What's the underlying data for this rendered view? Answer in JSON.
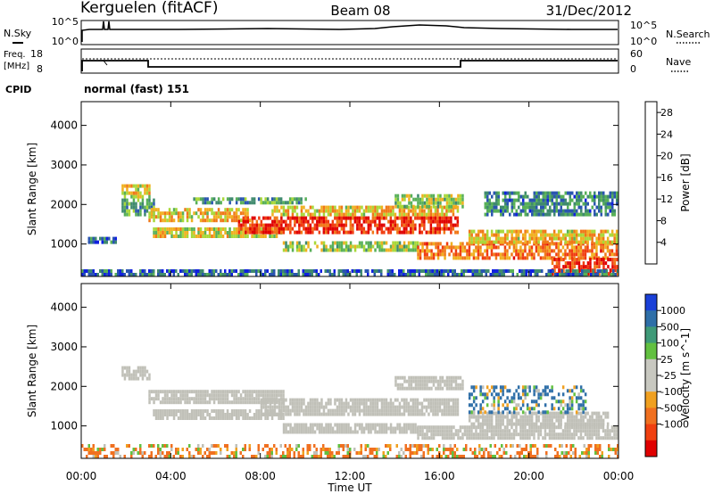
{
  "header": {
    "station": "Kerguelen (fitACF)",
    "beam": "Beam 08",
    "date": "31/Dec/2012"
  },
  "noise_panel": {
    "left_label": "N.Sky",
    "right_label": "N.Search",
    "left_ticks": [
      "10^5",
      "10^0"
    ],
    "right_ticks": [
      "10^5",
      "10^0"
    ]
  },
  "freq_panel": {
    "left_label_line1": "Freq.",
    "left_label_line2": "[MHz]",
    "left_ticks": [
      "18",
      "8"
    ],
    "right_label": "Nave",
    "right_ticks": [
      "60",
      "0"
    ]
  },
  "cpid": {
    "label": "CPID",
    "value": "normal (fast) 151"
  },
  "colors": {
    "power_scale": [
      "#1020e0",
      "#2a55b0",
      "#3f8a6e",
      "#58b058",
      "#a8d838",
      "#f0b020",
      "#f07818",
      "#f03c10",
      "#e00000"
    ],
    "velocity_scale": [
      "#1a40d8",
      "#2f6fa8",
      "#3f9a78",
      "#62c040",
      "#c8c8c0",
      "#c8c8c0",
      "#f0a020",
      "#f07020",
      "#f04010",
      "#e00000"
    ],
    "ground_scatter": "#c0c0b8"
  },
  "chart_data": [
    {
      "type": "heatmap",
      "title": "Power",
      "xlabel": "Time UT",
      "ylabel": "Slant Range [km]",
      "x_ticks": [
        "00:00",
        "04:00",
        "08:00",
        "12:00",
        "16:00",
        "20:00",
        "00:00"
      ],
      "xlim": [
        "00:00",
        "24:00"
      ],
      "y_ticks": [
        1000,
        2000,
        3000,
        4000
      ],
      "ylim": [
        180,
        4600
      ],
      "colorbar": {
        "label": "Power [dB]",
        "ticks": [
          4,
          8,
          12,
          16,
          20,
          24,
          28
        ],
        "range": [
          0,
          30
        ]
      },
      "bands": [
        {
          "t0": 0.3,
          "t1": 1.5,
          "r0": 1000,
          "r1": 1100,
          "level": 6
        },
        {
          "t0": 1.8,
          "t1": 3.0,
          "r0": 2150,
          "r1": 2450,
          "level": 16
        },
        {
          "t0": 1.8,
          "t1": 3.2,
          "r0": 1700,
          "r1": 2100,
          "level": 10
        },
        {
          "t0": 3.0,
          "t1": 7.5,
          "r0": 1550,
          "r1": 1900,
          "level": 18
        },
        {
          "t0": 3.2,
          "t1": 9.0,
          "r0": 1150,
          "r1": 1400,
          "level": 16
        },
        {
          "t0": 5.0,
          "t1": 10.0,
          "r0": 2000,
          "r1": 2150,
          "level": 10
        },
        {
          "t0": 7.0,
          "t1": 16.8,
          "r0": 1250,
          "r1": 1700,
          "level": 26
        },
        {
          "t0": 8.5,
          "t1": 16.8,
          "r0": 1700,
          "r1": 1900,
          "level": 18
        },
        {
          "t0": 9.0,
          "t1": 15.0,
          "r0": 800,
          "r1": 1000,
          "level": 14
        },
        {
          "t0": 14.0,
          "t1": 17.0,
          "r0": 1900,
          "r1": 2200,
          "level": 14
        },
        {
          "t0": 15.0,
          "t1": 24.0,
          "r0": 600,
          "r1": 1000,
          "level": 22
        },
        {
          "t0": 17.3,
          "t1": 24.0,
          "r0": 1000,
          "r1": 1300,
          "level": 18
        },
        {
          "t0": 18.0,
          "t1": 24.0,
          "r0": 1700,
          "r1": 2300,
          "level": 8
        },
        {
          "t0": 21.0,
          "t1": 24.0,
          "r0": 200,
          "r1": 600,
          "level": 26
        },
        {
          "t0": 0.0,
          "t1": 24.0,
          "r0": 180,
          "r1": 350,
          "level": 6
        }
      ]
    },
    {
      "type": "heatmap",
      "title": "Velocity",
      "xlabel": "Time UT",
      "ylabel": "Slant Range [km]",
      "x_ticks": [
        "00:00",
        "04:00",
        "08:00",
        "12:00",
        "16:00",
        "20:00",
        "00:00"
      ],
      "xlim": [
        "00:00",
        "24:00"
      ],
      "y_ticks": [
        1000,
        2000,
        3000,
        4000
      ],
      "ylim": [
        180,
        4600
      ],
      "colorbar": {
        "label": "Velocity [m s^-1]",
        "ticks": [
          "1000",
          "500",
          "100",
          "25",
          "-25",
          "-100",
          "-500",
          "-1000"
        ],
        "range": [
          -1000,
          1000
        ]
      },
      "bands": [
        {
          "t0": 1.8,
          "t1": 3.0,
          "r0": 2150,
          "r1": 2450,
          "kind": "ground"
        },
        {
          "t0": 3.0,
          "t1": 9.0,
          "r0": 1550,
          "r1": 1900,
          "kind": "ground"
        },
        {
          "t0": 3.2,
          "t1": 9.0,
          "r0": 1150,
          "r1": 1400,
          "kind": "ground"
        },
        {
          "t0": 8.0,
          "t1": 16.8,
          "r0": 1250,
          "r1": 1700,
          "kind": "ground"
        },
        {
          "t0": 9.0,
          "t1": 15.0,
          "r0": 800,
          "r1": 1000,
          "kind": "ground"
        },
        {
          "t0": 14.0,
          "t1": 17.0,
          "r0": 1900,
          "r1": 2200,
          "kind": "ground"
        },
        {
          "t0": 15.0,
          "t1": 24.0,
          "r0": 650,
          "r1": 1000,
          "kind": "ground"
        },
        {
          "t0": 17.3,
          "t1": 23.5,
          "r0": 1000,
          "r1": 1300,
          "kind": "ground"
        },
        {
          "t0": 17.3,
          "t1": 22.5,
          "r0": 1300,
          "r1": 2000,
          "kind": "velocity",
          "value": 150
        },
        {
          "t0": 0.0,
          "t1": 24.0,
          "r0": 180,
          "r1": 500,
          "kind": "velocity",
          "value": -150
        }
      ]
    }
  ]
}
